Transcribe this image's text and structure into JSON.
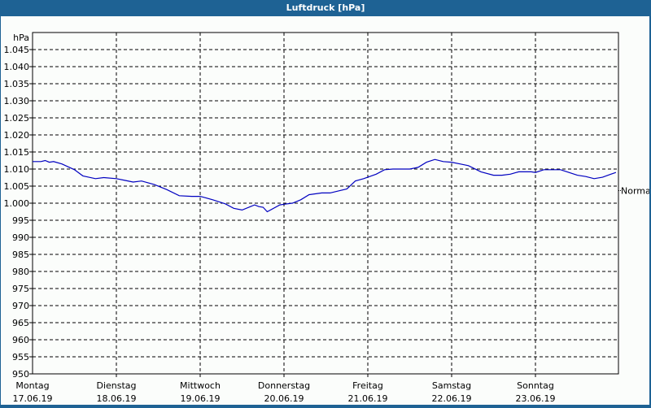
{
  "window": {
    "title": "Luftdruck [hPa]"
  },
  "colors": {
    "titlebar": "#1e6294",
    "background": "#fbfdfb",
    "line": "#0000c0",
    "grid": "#000000"
  },
  "chart_data": {
    "type": "line",
    "title": "Luftdruck [hPa]",
    "ylabel": "hPa",
    "xlabel": "",
    "ylim": [
      950,
      1050
    ],
    "yticks": [
      "950",
      "955",
      "960",
      "965",
      "970",
      "975",
      "980",
      "985",
      "990",
      "995",
      "1.000",
      "1.005",
      "1.010",
      "1.015",
      "1.020",
      "1.025",
      "1.030",
      "1.035",
      "1.040",
      "1.045"
    ],
    "reference_line": {
      "label": "Normal",
      "value": 1003.7
    },
    "grid": true,
    "categories": [
      {
        "day": "Montag",
        "date": "17.06.19"
      },
      {
        "day": "Dienstag",
        "date": "18.06.19"
      },
      {
        "day": "Mittwoch",
        "date": "19.06.19"
      },
      {
        "day": "Donnerstag",
        "date": "20.06.19"
      },
      {
        "day": "Freitag",
        "date": "21.06.19"
      },
      {
        "day": "Samstag",
        "date": "22.06.19"
      },
      {
        "day": "Sonntag",
        "date": "23.06.19"
      }
    ],
    "series": [
      {
        "name": "Luftdruck",
        "x_days": [
          0,
          0.1,
          0.15,
          0.2,
          0.25,
          0.35,
          0.5,
          0.6,
          0.75,
          0.85,
          1.0,
          1.1,
          1.2,
          1.3,
          1.45,
          1.6,
          1.75,
          1.9,
          2.0,
          2.15,
          2.3,
          2.4,
          2.5,
          2.6,
          2.65,
          2.7,
          2.75,
          2.8,
          2.95,
          3.0,
          3.1,
          3.2,
          3.3,
          3.45,
          3.55,
          3.65,
          3.75,
          3.85,
          3.95,
          4.1,
          4.2,
          4.3,
          4.4,
          4.5,
          4.6,
          4.7,
          4.8,
          4.9,
          5.0,
          5.1,
          5.2,
          5.35,
          5.5,
          5.6,
          5.7,
          5.8,
          5.95,
          6.0,
          6.1,
          6.2,
          6.3,
          6.4,
          6.5,
          6.6,
          6.7,
          6.8,
          6.9,
          6.96
        ],
        "values": [
          1012.2,
          1012.2,
          1012.5,
          1012.0,
          1012.2,
          1011.5,
          1009.8,
          1008.0,
          1007.2,
          1007.5,
          1007.2,
          1006.7,
          1006.2,
          1006.5,
          1005.5,
          1004.0,
          1002.2,
          1002.0,
          1002.0,
          1001.0,
          999.8,
          998.5,
          998.0,
          999.0,
          999.5,
          999.0,
          998.8,
          997.5,
          999.5,
          999.7,
          1000.0,
          1001.0,
          1002.5,
          1003.0,
          1003.0,
          1003.6,
          1004.2,
          1006.5,
          1007.2,
          1008.5,
          1009.8,
          1010.0,
          1010.0,
          1010.0,
          1010.5,
          1012.0,
          1012.8,
          1012.2,
          1012.0,
          1011.5,
          1011.0,
          1009.2,
          1008.2,
          1008.2,
          1008.5,
          1009.2,
          1009.2,
          1009.0,
          1009.8,
          1009.8,
          1009.8,
          1009.0,
          1008.2,
          1007.8,
          1007.2,
          1007.6,
          1008.5,
          1009.0
        ]
      }
    ]
  }
}
